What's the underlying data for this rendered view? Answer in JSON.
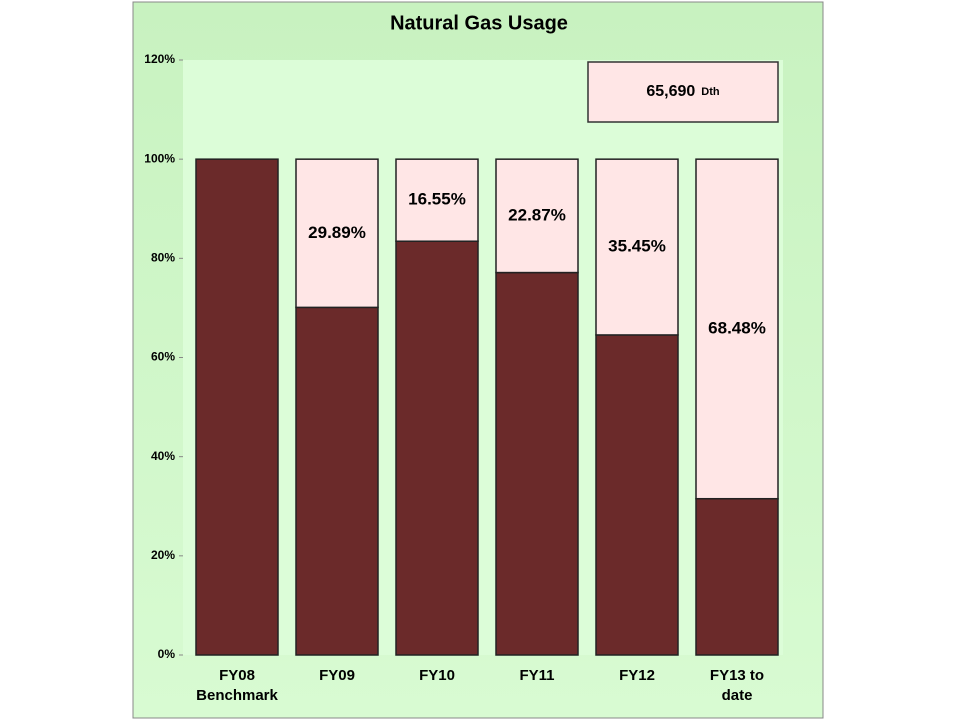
{
  "chart_data": {
    "type": "bar",
    "stacked": true,
    "title": "Natural Gas Usage",
    "categories": [
      [
        "FY08",
        "Benchmark"
      ],
      [
        "FY09"
      ],
      [
        "FY10"
      ],
      [
        "FY11"
      ],
      [
        "FY12"
      ],
      [
        "FY13 to",
        "date"
      ]
    ],
    "series": [
      {
        "color": "#6b2a2a",
        "values": [
          100,
          70.11,
          83.45,
          77.13,
          64.55,
          31.52
        ]
      },
      {
        "color": "#ffe6e6",
        "values": [
          0,
          29.89,
          16.55,
          22.87,
          35.45,
          68.48
        ],
        "value_labels": [
          null,
          "29.89%",
          "16.55%",
          "22.87%",
          "35.45%",
          "68.48%"
        ]
      }
    ],
    "ylim": [
      0,
      120
    ],
    "yticks": [
      {
        "value": 0,
        "label": "0%"
      },
      {
        "value": 20,
        "label": "20%"
      },
      {
        "value": 40,
        "label": "40%"
      },
      {
        "value": 60,
        "label": "60%"
      },
      {
        "value": 80,
        "label": "80%"
      },
      {
        "value": 100,
        "label": "100%"
      },
      {
        "value": 120,
        "label": "120%"
      }
    ],
    "annotation": {
      "text": "65,690",
      "unit": "Dth"
    }
  }
}
